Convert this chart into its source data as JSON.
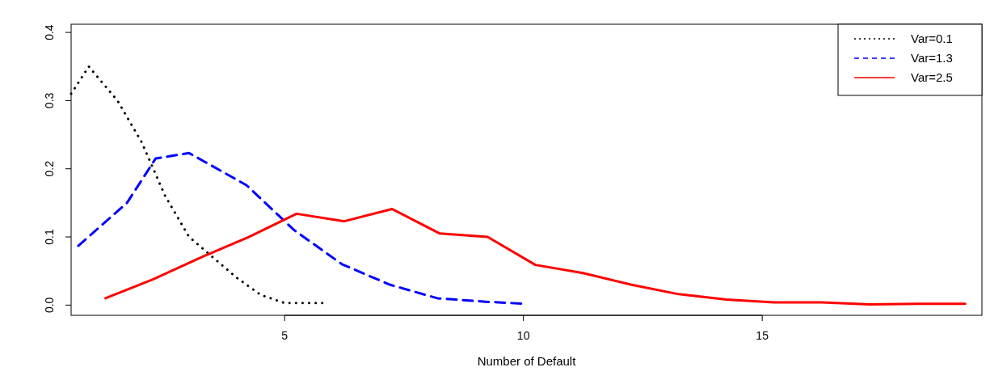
{
  "chart_data": {
    "type": "line",
    "xlabel": "Number of Default",
    "xlim": [
      0.53,
      19.6
    ],
    "ylim": [
      -0.015,
      0.412
    ],
    "xticks": [
      5,
      10,
      15
    ],
    "yticks": [
      {
        "value": 0,
        "label": "0.0"
      },
      {
        "value": 0.1,
        "label": "0.1"
      },
      {
        "value": 0.2,
        "label": "0.2"
      },
      {
        "value": 0.3,
        "label": "0.3"
      },
      {
        "value": 0.4,
        "label": "0.4"
      }
    ],
    "grid": false,
    "legend": "top right",
    "marker": "none",
    "series": [
      {
        "name": "Var=0.1",
        "color": "#000000",
        "line_style": "dotted",
        "x": [
          0.53,
          0.9,
          1.5,
          2.0,
          2.5,
          3.0,
          3.5,
          4.0,
          4.5,
          5.0,
          5.5,
          5.8
        ],
        "values": [
          0.31,
          0.35,
          0.3,
          0.24,
          0.16,
          0.1,
          0.07,
          0.04,
          0.015,
          0.003,
          0.003,
          0.003
        ]
      },
      {
        "name": "Var=1.3",
        "color": "#0000ff",
        "line_style": "dashed",
        "x": [
          0.68,
          1.7,
          2.3,
          3.0,
          4.2,
          5.2,
          6.2,
          7.2,
          8.2,
          9.2,
          10.0
        ],
        "values": [
          0.087,
          0.15,
          0.215,
          0.223,
          0.176,
          0.11,
          0.06,
          0.03,
          0.01,
          0.005,
          0.002
        ]
      },
      {
        "name": "Var=2.5",
        "color": "#ff0000",
        "line_style": "solid",
        "x": [
          1.25,
          2.25,
          3.25,
          4.25,
          5.25,
          6.25,
          7.25,
          8.25,
          9.25,
          10.25,
          11.25,
          12.25,
          13.25,
          14.25,
          15.25,
          16.25,
          17.25,
          18.25,
          19.25
        ],
        "values": [
          0.01,
          0.038,
          0.07,
          0.1,
          0.134,
          0.123,
          0.141,
          0.105,
          0.1,
          0.059,
          0.047,
          0.03,
          0.016,
          0.008,
          0.004,
          0.004,
          0.001,
          0.002,
          0.002
        ]
      }
    ]
  }
}
